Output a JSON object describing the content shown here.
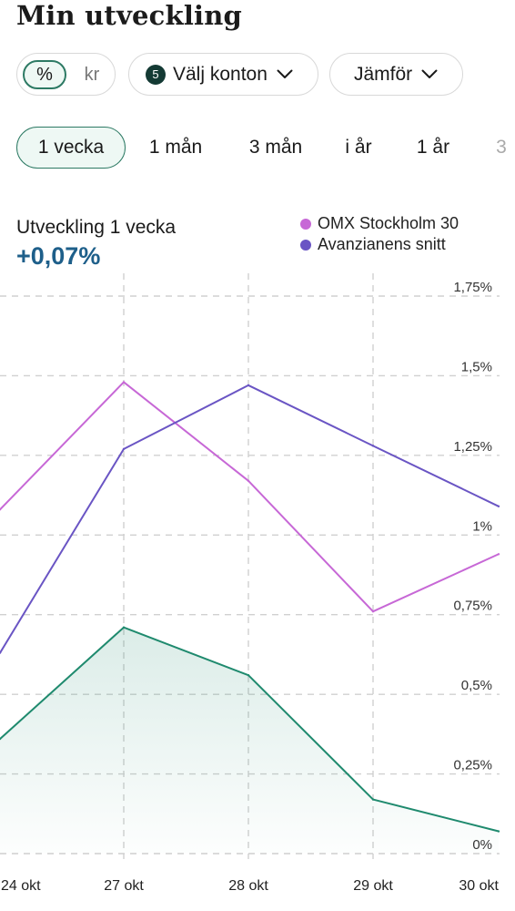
{
  "header": {
    "title": "Min utveckling"
  },
  "unit_toggle": {
    "percent_label": "%",
    "currency_label": "kr"
  },
  "accounts_button": {
    "count": "5",
    "label": "Välj konton"
  },
  "compare_button": {
    "label": "Jämför"
  },
  "periods": [
    {
      "label": "1 vecka",
      "active": true
    },
    {
      "label": "1 mån",
      "active": false
    },
    {
      "label": "3 mån",
      "active": false
    },
    {
      "label": "i år",
      "active": false
    },
    {
      "label": "1 år",
      "active": false
    },
    {
      "label": "3",
      "active": false
    }
  ],
  "summary": {
    "label": "Utveckling 1 vecka",
    "value": "+0,07%"
  },
  "colors": {
    "omx": "#c768d6",
    "avanza": "#6a55c4",
    "mine": "#1f8a6e",
    "value_text": "#1e5f8a",
    "accent": "#2d7a64"
  },
  "chart_data": {
    "type": "line",
    "x": [
      "24 okt",
      "27 okt",
      "28 okt",
      "29 okt",
      "30 okt"
    ],
    "y_ticks": [
      "0%",
      "0,25%",
      "0,5%",
      "0,75%",
      "1%",
      "1,25%",
      "1,5%",
      "1,75%"
    ],
    "ylim": [
      0,
      1.75
    ],
    "grid": true,
    "legend_position": "top-right",
    "series": [
      {
        "name": "OMX Stockholm 30",
        "color": "#c768d6",
        "values": [
          1.08,
          1.48,
          1.17,
          0.76,
          0.94
        ]
      },
      {
        "name": "Avanzianens snitt",
        "color": "#6a55c4",
        "values": [
          0.63,
          1.27,
          1.47,
          1.28,
          1.09
        ]
      },
      {
        "name": "",
        "color": "#1f8a6e",
        "values": [
          0.36,
          0.71,
          0.56,
          0.17,
          0.07
        ],
        "area": true
      }
    ]
  }
}
